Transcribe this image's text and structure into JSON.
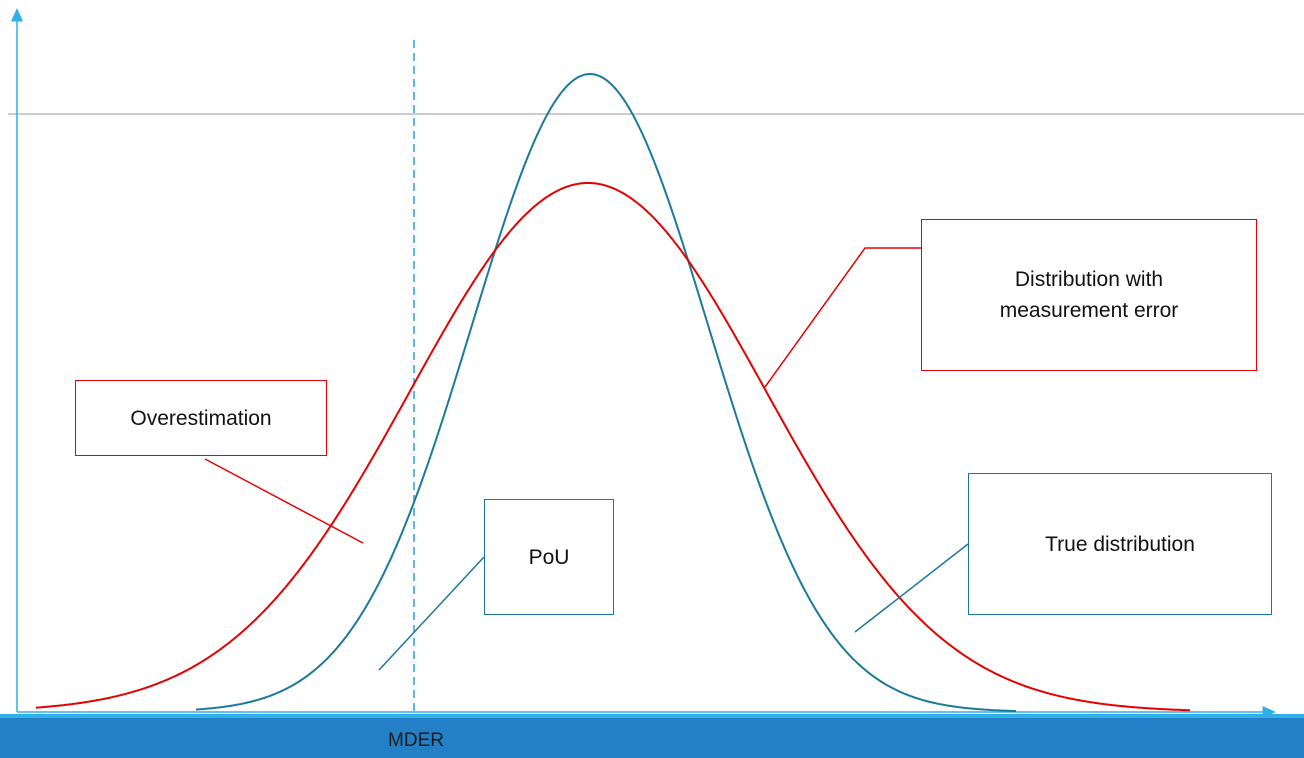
{
  "labels": {
    "overestimation": "Overestimation",
    "measurement_error_line1": "Distribution with",
    "measurement_error_line2": "measurement error",
    "pou": "PoU",
    "true_distribution": "True distribution",
    "threshold": "MDER"
  },
  "colors": {
    "measurement_error_curve": "#e60000",
    "true_curve": "#1b7a9a",
    "threshold_line": "#2f9ed8",
    "axes": "#2fb0e8",
    "reference_line": "#9a9a9a",
    "footer_bar": "#2380c7"
  }
}
